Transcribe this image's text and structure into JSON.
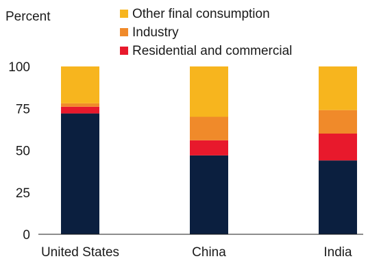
{
  "chart_data": {
    "type": "bar",
    "stacked": true,
    "ylabel": "Percent",
    "ylim": [
      0,
      100
    ],
    "yticks": [
      0,
      25,
      50,
      75,
      100
    ],
    "categories": [
      "United States",
      "China",
      "India"
    ],
    "series": [
      {
        "name": "",
        "color": "#0b1f3f",
        "values": [
          72,
          47,
          44
        ]
      },
      {
        "name": "Residential and commercial",
        "color": "#e8192c",
        "values": [
          4,
          9,
          16
        ]
      },
      {
        "name": "Industry",
        "color": "#f08a2a",
        "values": [
          2,
          14,
          14
        ]
      },
      {
        "name": "Other final consumption",
        "color": "#f7b51e",
        "values": [
          22,
          30,
          26
        ]
      }
    ],
    "legend_position": "top",
    "grid": false
  }
}
